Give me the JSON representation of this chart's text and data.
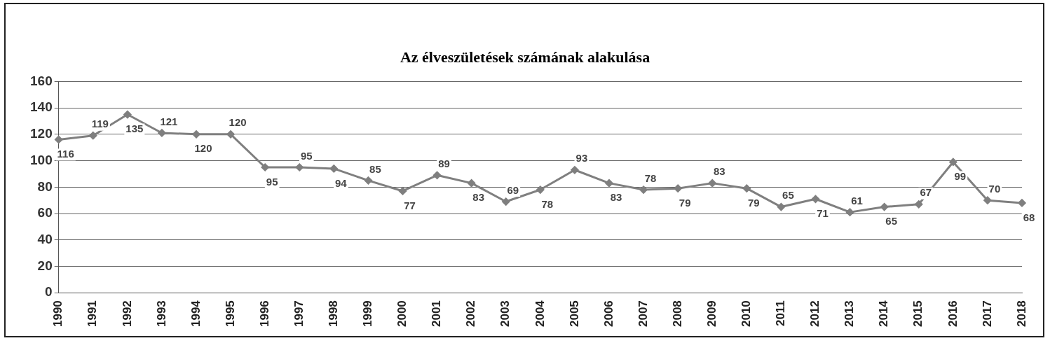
{
  "chart_data": {
    "type": "line",
    "title": "Az élveszületések számának alakulása",
    "categories": [
      "1990",
      "1991",
      "1992",
      "1993",
      "1994",
      "1995",
      "1996",
      "1997",
      "1998",
      "1999",
      "2000",
      "2001",
      "2002",
      "2003",
      "2004",
      "2005",
      "2006",
      "2007",
      "2008",
      "2009",
      "2010",
      "2011",
      "2012",
      "2013",
      "2014",
      "2015",
      "2016",
      "2017",
      "2018"
    ],
    "series": [
      {
        "color": "#7f7f7f",
        "values": [
          116,
          119,
          135,
          121,
          120,
          120,
          95,
          95,
          94,
          85,
          77,
          89,
          83,
          69,
          78,
          93,
          83,
          78,
          79,
          83,
          79,
          65,
          71,
          61,
          65,
          67,
          99,
          70,
          68
        ]
      }
    ],
    "ylim": [
      0,
      160
    ],
    "yticks": [
      0,
      20,
      40,
      60,
      80,
      100,
      120,
      140,
      160
    ],
    "grid": "y",
    "legend": false,
    "marker": "diamond",
    "line_style": "solid",
    "data_labels": true
  }
}
